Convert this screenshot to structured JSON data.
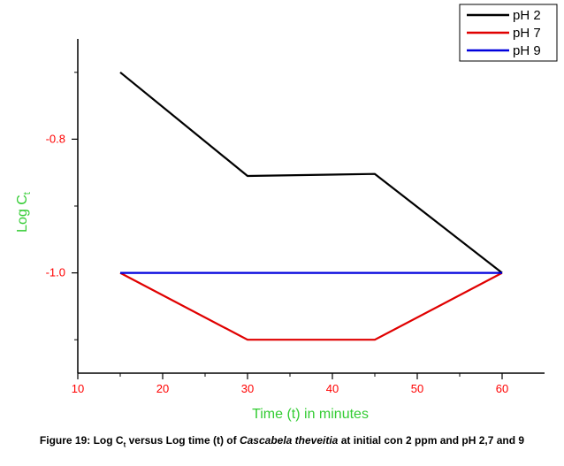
{
  "chart_data": {
    "type": "line",
    "xlabel": "Time (t) in minutes",
    "ylabel_main": "Log C",
    "ylabel_sub": "t",
    "xlim": [
      10,
      65
    ],
    "ylim": [
      -1.15,
      -0.65
    ],
    "x_ticks": [
      10,
      20,
      30,
      40,
      50,
      60
    ],
    "x_tick_labels": [
      "10",
      "20",
      "30",
      "40",
      "50",
      "60"
    ],
    "y_ticks": [
      -0.8,
      -1.0
    ],
    "y_tick_labels": [
      "-0.8",
      "-1.0"
    ],
    "legend_position": "top-right",
    "grid": false,
    "series": [
      {
        "name": "pH 2",
        "color": "#000000",
        "x": [
          15,
          30,
          45,
          60
        ],
        "y": [
          -0.7,
          -0.855,
          -0.852,
          -1.0
        ]
      },
      {
        "name": "pH 7",
        "color": "#e00000",
        "x": [
          15,
          30,
          45,
          60
        ],
        "y": [
          -1.0,
          -1.1,
          -1.1,
          -1.0
        ]
      },
      {
        "name": "pH 9",
        "color": "#0000dd",
        "x": [
          15,
          60
        ],
        "y": [
          -1.0,
          -1.0
        ]
      }
    ]
  },
  "caption": {
    "prefix": "Figure 19: Log C",
    "sub": "t",
    "middle": " versus Log time (t) of ",
    "species": "Cascabela theveitia",
    "suffix": " at initial con 2 ppm and pH 2,7 and 9"
  }
}
